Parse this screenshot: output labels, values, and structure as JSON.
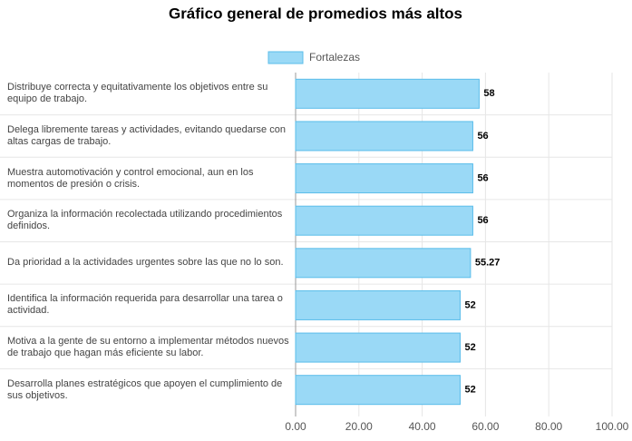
{
  "chart_data": {
    "type": "hbar",
    "title": "Gráfico general de promedios más altos",
    "categories": [
      "Distribuye correcta y equitativamente los objetivos entre su equipo de trabajo.",
      "Delega libremente tareas y actividades, evitando quedarse con altas cargas de trabajo.",
      "Muestra automotivación y control emocional, aun en los momentos de presión o crisis.",
      "Organiza la información recolectada utilizando procedimientos definidos.",
      "Da prioridad a la actividades urgentes sobre las que no lo son.",
      "Identifica la información requerida para desarrollar una tarea o actividad.",
      "Motiva a la gente de su entorno a implementar métodos nuevos de trabajo que hagan más eficiente su labor.",
      "Desarrolla planes estratégicos que apoyen el cumplimiento de sus objetivos."
    ],
    "series": [
      {
        "name": "Fortalezas",
        "color": "#9ad9f6",
        "values": [
          58,
          56,
          56,
          56,
          55.27,
          52,
          52,
          52
        ]
      }
    ],
    "xlim": [
      0,
      100
    ],
    "xticks": [
      {
        "value": 0,
        "label": "0.00"
      },
      {
        "value": 20,
        "label": "20.00"
      },
      {
        "value": 40,
        "label": "40.00"
      },
      {
        "value": 60,
        "label": "60.00"
      },
      {
        "value": 80,
        "label": "80.00"
      },
      {
        "value": 100,
        "label": "100.00"
      }
    ],
    "grid": true,
    "legend": "top"
  }
}
